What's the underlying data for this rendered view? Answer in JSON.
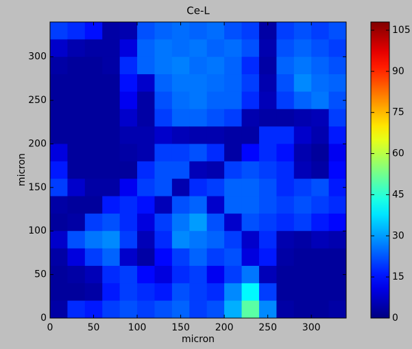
{
  "chart_data": {
    "type": "heatmap",
    "title": "Ce-L",
    "xlabel": "micron",
    "ylabel": "micron",
    "colormap": "jet",
    "xlim": [
      0,
      340
    ],
    "ylim": [
      0,
      340
    ],
    "clim": [
      0,
      108
    ],
    "xticks": [
      0,
      50,
      100,
      150,
      200,
      250,
      300
    ],
    "yticks": [
      0,
      50,
      100,
      150,
      200,
      250,
      300
    ],
    "cticks": [
      0,
      15,
      30,
      45,
      60,
      75,
      90,
      105
    ],
    "values": [
      [
        20,
        18,
        15,
        4,
        5,
        22,
        24,
        25,
        24,
        25,
        22,
        20,
        4,
        20,
        22,
        20,
        22
      ],
      [
        8,
        5,
        4,
        4,
        10,
        24,
        26,
        25,
        26,
        24,
        25,
        22,
        5,
        22,
        24,
        22,
        20
      ],
      [
        4,
        3,
        3,
        4,
        18,
        24,
        26,
        27,
        25,
        26,
        24,
        18,
        4,
        24,
        26,
        24,
        22
      ],
      [
        3,
        3,
        3,
        3,
        15,
        8,
        24,
        26,
        26,
        25,
        24,
        20,
        5,
        22,
        28,
        25,
        24
      ],
      [
        3,
        3,
        3,
        3,
        12,
        4,
        22,
        25,
        26,
        24,
        24,
        18,
        6,
        20,
        24,
        26,
        22
      ],
      [
        3,
        3,
        3,
        3,
        8,
        4,
        20,
        24,
        24,
        22,
        20,
        5,
        4,
        4,
        5,
        6,
        20
      ],
      [
        3,
        3,
        3,
        3,
        5,
        5,
        8,
        6,
        5,
        5,
        4,
        4,
        18,
        18,
        8,
        5,
        16
      ],
      [
        10,
        3,
        3,
        3,
        4,
        5,
        20,
        20,
        22,
        18,
        4,
        14,
        18,
        15,
        5,
        3,
        12
      ],
      [
        16,
        3,
        3,
        3,
        3,
        18,
        22,
        22,
        6,
        5,
        20,
        22,
        20,
        18,
        6,
        4,
        14
      ],
      [
        20,
        8,
        4,
        4,
        12,
        20,
        22,
        5,
        18,
        20,
        24,
        24,
        22,
        18,
        20,
        22,
        16
      ],
      [
        4,
        3,
        3,
        16,
        18,
        15,
        6,
        22,
        24,
        8,
        24,
        24,
        22,
        20,
        22,
        20,
        18
      ],
      [
        3,
        4,
        20,
        22,
        18,
        10,
        20,
        26,
        30,
        22,
        8,
        22,
        20,
        18,
        20,
        16,
        14
      ],
      [
        8,
        22,
        26,
        28,
        20,
        6,
        18,
        28,
        26,
        24,
        20,
        8,
        18,
        5,
        4,
        6,
        5
      ],
      [
        4,
        10,
        20,
        24,
        8,
        4,
        14,
        20,
        24,
        20,
        22,
        10,
        16,
        4,
        3,
        3,
        3
      ],
      [
        3,
        4,
        6,
        18,
        20,
        14,
        10,
        18,
        20,
        12,
        20,
        26,
        6,
        3,
        3,
        3,
        3
      ],
      [
        3,
        3,
        4,
        16,
        20,
        18,
        16,
        22,
        20,
        18,
        28,
        40,
        20,
        3,
        3,
        3,
        3
      ],
      [
        4,
        18,
        16,
        20,
        22,
        20,
        22,
        24,
        20,
        22,
        32,
        50,
        28,
        4,
        3,
        3,
        4
      ]
    ]
  }
}
